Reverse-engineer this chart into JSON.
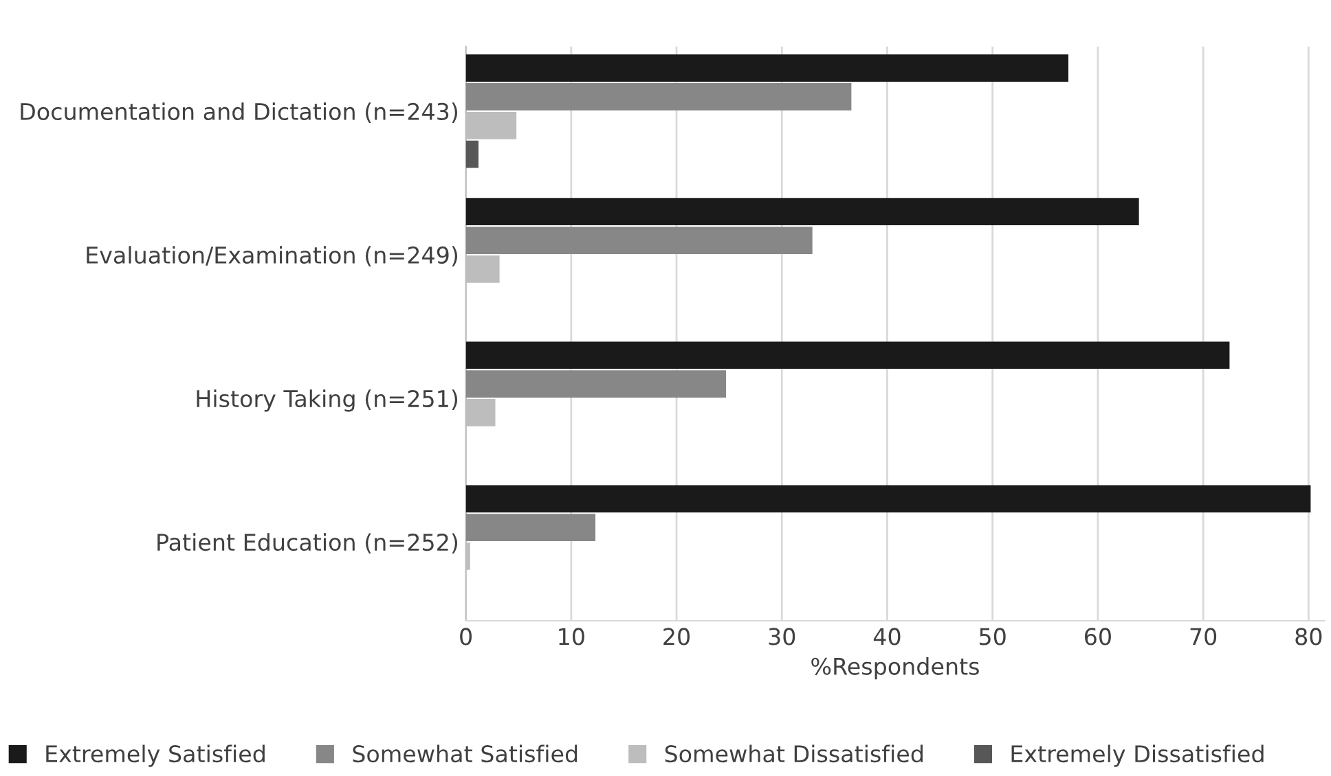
{
  "chart_data": {
    "type": "bar",
    "orientation": "horizontal",
    "xlabel": "%Respondents",
    "categories": [
      "Documentation and Dictation (n=243)",
      "Evaluation/Examination (n=249)",
      "History Taking (n=251)",
      "Patient Education (n=252)"
    ],
    "series": [
      {
        "name": "Extremely Satisfied",
        "color": "#1a1a1a",
        "values": [
          57.2,
          63.9,
          72.5,
          80.2
        ]
      },
      {
        "name": "Somewhat Satisfied",
        "color": "#878787",
        "values": [
          36.6,
          32.9,
          24.7,
          12.3
        ]
      },
      {
        "name": "Somewhat Dissatisfied",
        "color": "#bdbdbd",
        "values": [
          4.8,
          3.2,
          2.8,
          0.4
        ]
      },
      {
        "name": "Extremely Dissatisfied",
        "color": "#575757",
        "values": [
          1.2,
          null,
          null,
          null
        ]
      }
    ],
    "xlim": [
      0,
      81.5
    ],
    "xticks": [
      0,
      10,
      20,
      30,
      40,
      50,
      60,
      70,
      80
    ],
    "grid": "x",
    "legend": "bottom"
  }
}
